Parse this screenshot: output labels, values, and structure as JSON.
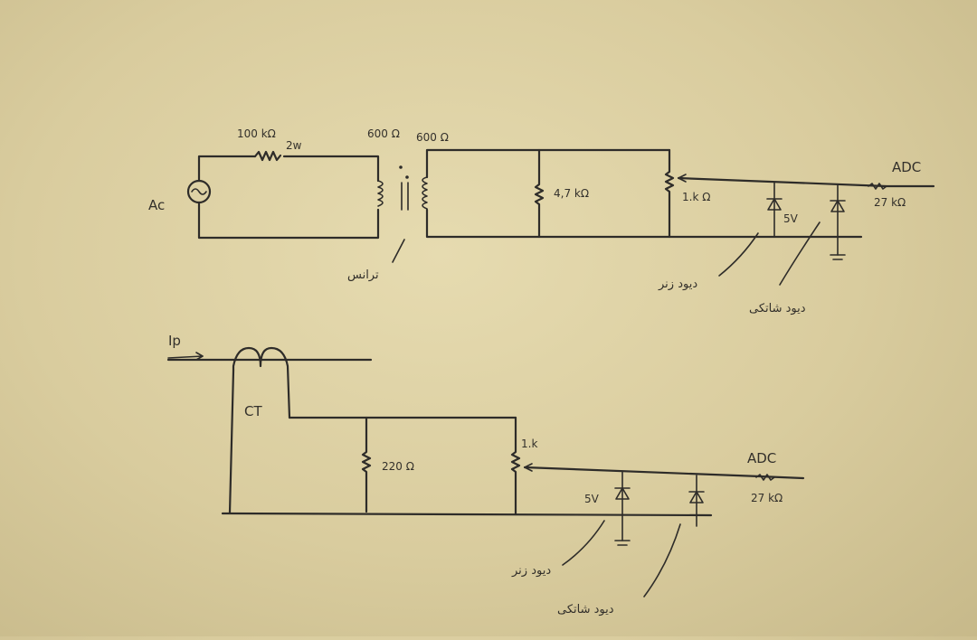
{
  "diagram": {
    "top_circuit": {
      "source_label": "Ac",
      "resistor_value": "100 kΩ",
      "resistor_power": "2w",
      "primary_impedance": "600 Ω",
      "secondary_impedance": "600 Ω",
      "transformer_label": "ترانس",
      "load_resistor": "4,7 kΩ",
      "series_resistor": "1.k Ω",
      "zener_voltage": "5V",
      "adc_label": "ADC",
      "adc_resistor": "27 kΩ",
      "zener_note": "دیود زنر",
      "schottky_note": "دیود شاتکی"
    },
    "bottom_circuit": {
      "current_label": "Ip",
      "ct_label": "CT",
      "burden_resistor": "220 Ω",
      "series_resistor": "1.k",
      "zener_voltage": "5V",
      "adc_label": "ADC",
      "adc_resistor": "27 kΩ",
      "zener_note": "دیود زنر",
      "schottky_note": "دیود شاتکی"
    }
  }
}
